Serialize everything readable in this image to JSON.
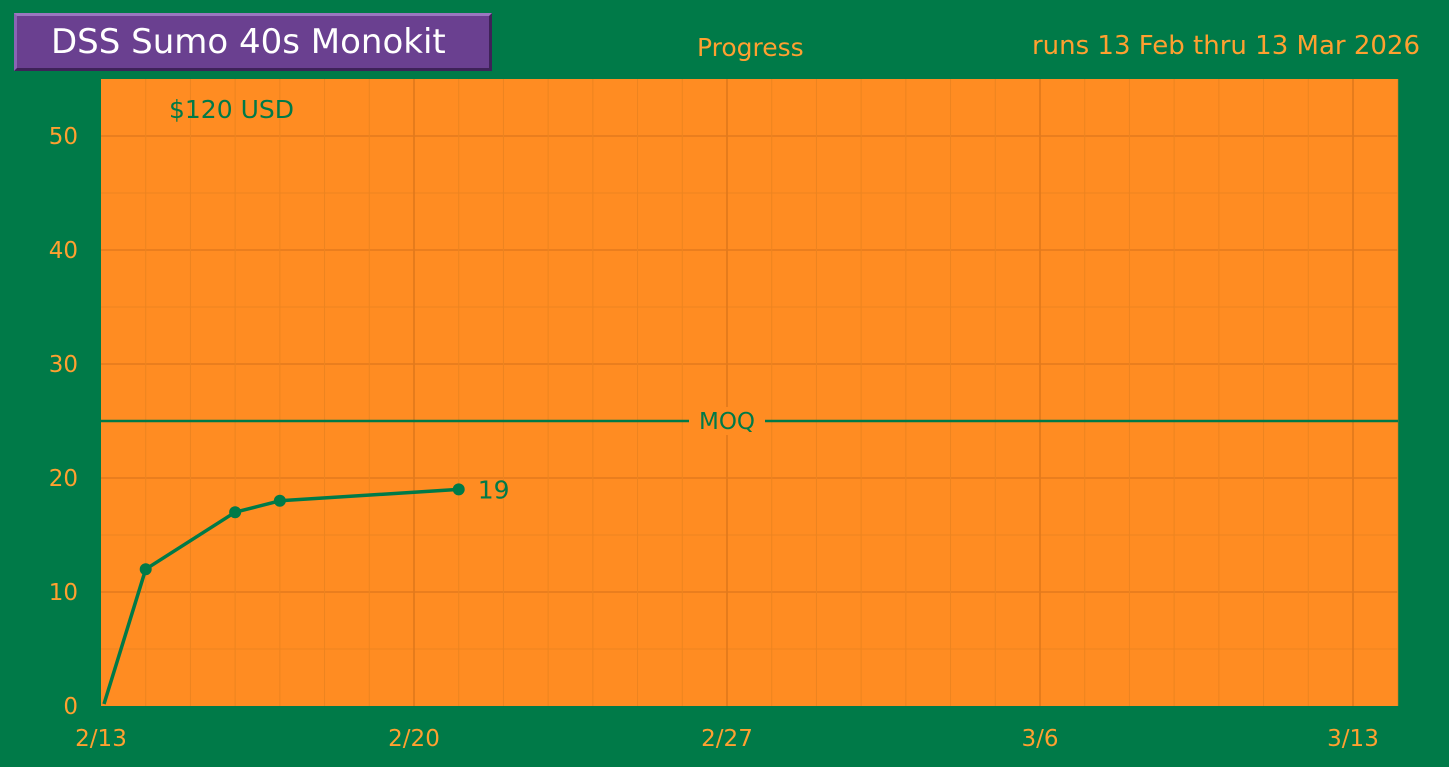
{
  "header": {
    "title": "DSS Sumo 40s Monokit",
    "progress_label": "Progress",
    "date_range": "runs 13 Feb thru 13 Mar 2026"
  },
  "colors": {
    "background": "#007a48",
    "plot_area": "#ff8c22",
    "accent_text": "#ffa030",
    "line": "#007a48",
    "title_box": "#6a4090"
  },
  "chart_data": {
    "type": "line",
    "price_label": "$120 USD",
    "x_dates": [
      "2026-02-13",
      "2026-02-14",
      "2026-02-16",
      "2026-02-17",
      "2026-02-21"
    ],
    "x_ticks": [
      "2/13",
      "2/20",
      "2/27",
      "3/6",
      "3/13"
    ],
    "xlim": [
      "2026-02-13",
      "2026-03-13"
    ],
    "y": [
      0,
      12,
      17,
      18,
      19
    ],
    "y_ticks": [
      "0",
      "10",
      "20",
      "30",
      "40",
      "50"
    ],
    "ylim": [
      0,
      55
    ],
    "last_value_label": "19",
    "reference_line": {
      "label": "MOQ",
      "value": 25
    },
    "grid": true
  }
}
